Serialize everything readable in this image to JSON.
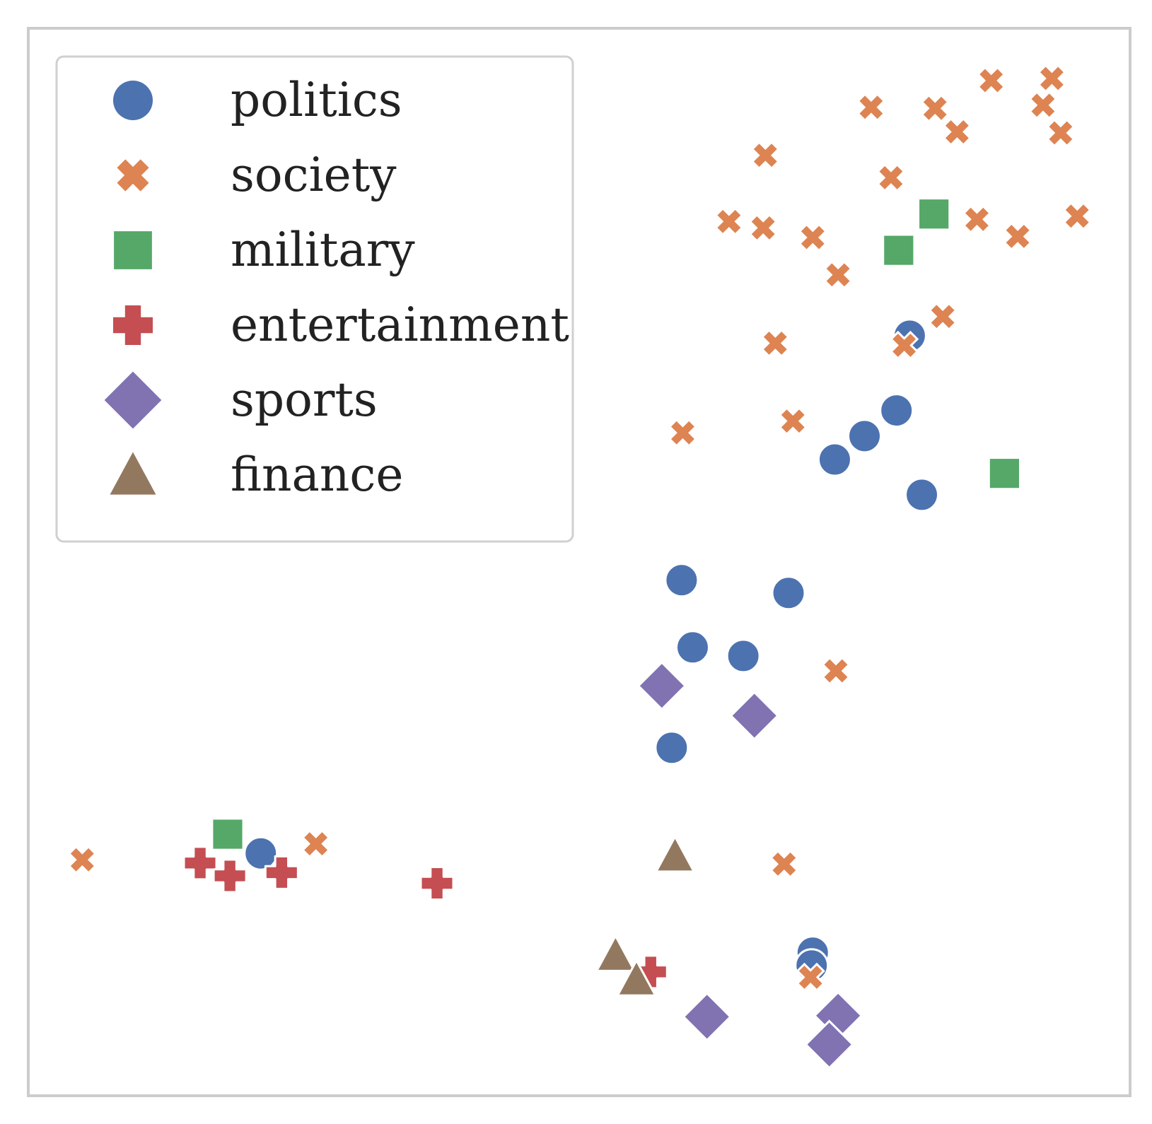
{
  "chart_data": {
    "type": "scatter",
    "title": "",
    "xlabel": "",
    "ylabel": "",
    "xlim": [
      0,
      100
    ],
    "ylim": [
      0,
      100
    ],
    "grid": false,
    "axis_ticks": false,
    "legend": {
      "position": "top-left"
    },
    "series": [
      {
        "name": "politics",
        "marker": "circle",
        "color": "#4c72b0",
        "points": [
          [
            80.0,
            71.2
          ],
          [
            78.8,
            64.2
          ],
          [
            75.9,
            61.8
          ],
          [
            73.2,
            59.6
          ],
          [
            81.1,
            56.3
          ],
          [
            59.3,
            48.3
          ],
          [
            69.0,
            47.1
          ],
          [
            60.3,
            42.0
          ],
          [
            64.9,
            41.2
          ],
          [
            58.4,
            32.6
          ],
          [
            21.1,
            22.7
          ],
          [
            71.2,
            13.4
          ],
          [
            71.1,
            12.2
          ]
        ]
      },
      {
        "name": "society",
        "marker": "x",
        "color": "#dd8452",
        "points": [
          [
            87.4,
            95.1
          ],
          [
            92.9,
            95.3
          ],
          [
            76.5,
            92.6
          ],
          [
            82.3,
            92.5
          ],
          [
            92.1,
            92.8
          ],
          [
            84.3,
            90.3
          ],
          [
            93.7,
            90.2
          ],
          [
            66.9,
            88.1
          ],
          [
            78.3,
            86.0
          ],
          [
            63.6,
            81.9
          ],
          [
            66.7,
            81.3
          ],
          [
            71.2,
            80.4
          ],
          [
            86.1,
            82.1
          ],
          [
            95.2,
            82.4
          ],
          [
            89.8,
            80.5
          ],
          [
            73.5,
            76.9
          ],
          [
            83.0,
            73.0
          ],
          [
            67.8,
            70.5
          ],
          [
            59.4,
            62.1
          ],
          [
            69.4,
            63.2
          ],
          [
            73.3,
            39.8
          ],
          [
            4.9,
            22.1
          ],
          [
            26.1,
            23.6
          ],
          [
            68.6,
            21.7
          ],
          [
            71.0,
            11.1
          ],
          [
            79.5,
            70.3
          ]
        ]
      },
      {
        "name": "military",
        "marker": "square",
        "color": "#55a868",
        "points": [
          [
            82.2,
            82.6
          ],
          [
            79.0,
            79.2
          ],
          [
            88.6,
            58.3
          ],
          [
            18.1,
            24.5
          ]
        ]
      },
      {
        "name": "entertainment",
        "marker": "plus",
        "color": "#c44e52",
        "points": [
          [
            15.6,
            21.8
          ],
          [
            18.3,
            20.6
          ],
          [
            23.0,
            20.9
          ],
          [
            37.1,
            19.9
          ],
          [
            56.5,
            11.6
          ]
        ]
      },
      {
        "name": "sports",
        "marker": "diamond",
        "color": "#8172b2",
        "points": [
          [
            57.5,
            38.4
          ],
          [
            65.9,
            35.6
          ],
          [
            61.6,
            7.4
          ],
          [
            73.5,
            7.5
          ],
          [
            72.7,
            4.8
          ]
        ]
      },
      {
        "name": "finance",
        "marker": "triangle",
        "color": "#937860",
        "points": [
          [
            58.7,
            22.5
          ],
          [
            53.3,
            13.2
          ],
          [
            55.2,
            10.9
          ]
        ]
      }
    ]
  }
}
